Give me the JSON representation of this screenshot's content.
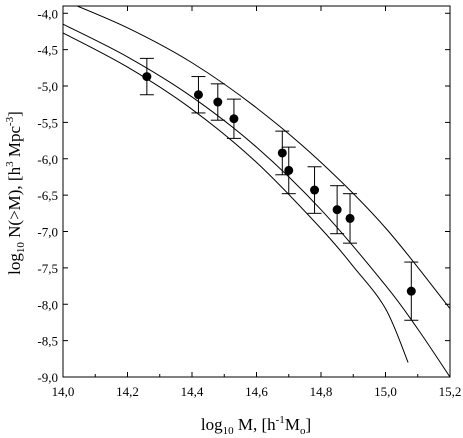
{
  "chart_data": {
    "type": "scatter",
    "xlabel": {
      "pre": "log",
      "sub": "10",
      "mid": " M, [h",
      "sup": "-1",
      "post": "M",
      "sub2": "o",
      "end": "]"
    },
    "ylabel": {
      "pre": "log",
      "sub": "10",
      "mid": " N(>M), [h",
      "sup": "3",
      "mid2": " Mpc",
      "sup2": "-3",
      "end": "]"
    },
    "xlim": [
      14.0,
      15.2
    ],
    "ylim": [
      -9.0,
      -3.9
    ],
    "x_ticks": [
      "14,0",
      "14,2",
      "14,4",
      "14,6",
      "14,8",
      "15,0",
      "15,2"
    ],
    "x_tick_values": [
      14.0,
      14.2,
      14.4,
      14.6,
      14.8,
      15.0,
      15.2
    ],
    "y_ticks": [
      "-4,0",
      "-4,5",
      "-5,0",
      "-5,5",
      "-6,0",
      "-6,5",
      "-7,0",
      "-7,5",
      "-8,0",
      "-8,5",
      "-9,0"
    ],
    "y_tick_values": [
      -4.0,
      -4.5,
      -5.0,
      -5.5,
      -6.0,
      -6.5,
      -7.0,
      -7.5,
      -8.0,
      -8.5,
      -9.0
    ],
    "grid": false,
    "points": [
      {
        "x": 14.26,
        "y": -4.87,
        "err": 0.25
      },
      {
        "x": 14.42,
        "y": -5.12,
        "err": 0.25
      },
      {
        "x": 14.48,
        "y": -5.22,
        "err": 0.25
      },
      {
        "x": 14.53,
        "y": -5.45,
        "err": 0.27
      },
      {
        "x": 14.68,
        "y": -5.92,
        "err": 0.3
      },
      {
        "x": 14.7,
        "y": -6.16,
        "err": 0.32
      },
      {
        "x": 14.78,
        "y": -6.43,
        "err": 0.32
      },
      {
        "x": 14.85,
        "y": -6.7,
        "err": 0.33
      },
      {
        "x": 14.89,
        "y": -6.82,
        "err": 0.34
      },
      {
        "x": 15.08,
        "y": -7.82,
        "err": 0.4
      }
    ],
    "curves": [
      {
        "x": [
          14.0,
          14.2,
          14.4,
          14.6,
          14.8,
          15.0,
          15.2
        ],
        "y": [
          -3.82,
          -4.2,
          -4.68,
          -5.3,
          -6.05,
          -6.95,
          -8.06
        ]
      },
      {
        "x": [
          14.0,
          14.2,
          14.4,
          14.6,
          14.8,
          15.0,
          15.1,
          15.2
        ],
        "y": [
          -4.15,
          -4.6,
          -5.15,
          -5.84,
          -6.7,
          -7.74,
          -8.34,
          -9.0
        ]
      },
      {
        "x": [
          14.0,
          14.2,
          14.4,
          14.6,
          14.8,
          14.9,
          15.0,
          15.07
        ],
        "y": [
          -4.27,
          -4.74,
          -5.32,
          -6.05,
          -6.96,
          -7.48,
          -8.06,
          -8.8
        ]
      }
    ]
  }
}
